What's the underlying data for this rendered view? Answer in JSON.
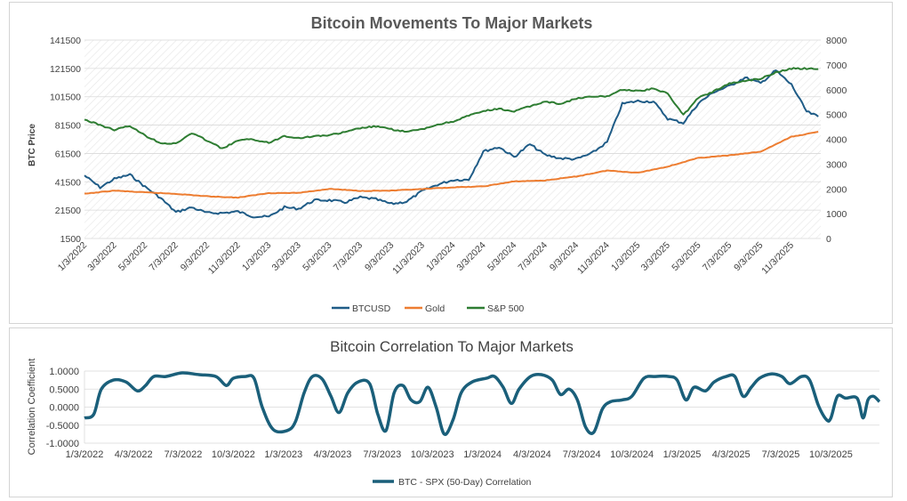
{
  "chart_data": [
    {
      "type": "line",
      "title": "Bitcoin Movements To Major Markets",
      "ylabel": "BTC Price",
      "y2label": "",
      "ylim": [
        1500,
        141500
      ],
      "y2lim": [
        0,
        8000
      ],
      "yticks": [
        "141500",
        "121500",
        "101500",
        "81500",
        "61500",
        "41500",
        "21500",
        "1500"
      ],
      "y2ticks": [
        "8000",
        "7000",
        "6000",
        "5000",
        "4000",
        "3000",
        "2000",
        "1000",
        "0"
      ],
      "xticks": [
        "1/3/2022",
        "3/3/2022",
        "5/3/2022",
        "7/3/2022",
        "9/3/2022",
        "11/3/2022",
        "1/3/2023",
        "3/3/2023",
        "5/3/2023",
        "7/3/2023",
        "9/3/2023",
        "11/3/2023",
        "1/3/2024",
        "3/3/2024",
        "5/3/2024",
        "7/3/2024",
        "9/3/2024",
        "11/3/2024",
        "1/3/2025",
        "3/3/2025",
        "5/3/2025",
        "7/3/2025",
        "9/3/2025",
        "11/3/2025"
      ],
      "grid": true,
      "legend_position": "bottom",
      "series": [
        {
          "name": "BTCUSD",
          "axis": "left",
          "color": "#1f5c87",
          "points": [
            [
              "1/3/2022",
              46000
            ],
            [
              "2/3/2022",
              37500
            ],
            [
              "3/3/2022",
              43500
            ],
            [
              "4/3/2022",
              46500
            ],
            [
              "5/3/2022",
              38000
            ],
            [
              "6/3/2022",
              30000
            ],
            [
              "7/3/2022",
              20000
            ],
            [
              "8/3/2022",
              23500
            ],
            [
              "9/3/2022",
              19500
            ],
            [
              "10/3/2022",
              19500
            ],
            [
              "11/3/2022",
              20500
            ],
            [
              "12/3/2022",
              17000
            ],
            [
              "1/3/2023",
              16800
            ],
            [
              "2/3/2023",
              23500
            ],
            [
              "3/3/2023",
              22500
            ],
            [
              "4/3/2023",
              28500
            ],
            [
              "5/3/2023",
              28500
            ],
            [
              "6/3/2023",
              27000
            ],
            [
              "7/3/2023",
              30500
            ],
            [
              "8/3/2023",
              29200
            ],
            [
              "9/3/2023",
              25900
            ],
            [
              "10/3/2023",
              27500
            ],
            [
              "11/3/2023",
              35000
            ],
            [
              "12/3/2023",
              39500
            ],
            [
              "1/3/2024",
              42800
            ],
            [
              "2/3/2024",
              43000
            ],
            [
              "3/3/2024",
              63000
            ],
            [
              "4/3/2024",
              66000
            ],
            [
              "5/3/2024",
              59000
            ],
            [
              "6/3/2024",
              68000
            ],
            [
              "7/3/2024",
              60500
            ],
            [
              "8/3/2024",
              58000
            ],
            [
              "9/3/2024",
              57500
            ],
            [
              "10/3/2024",
              61500
            ],
            [
              "11/3/2024",
              69500
            ],
            [
              "12/3/2024",
              96500
            ],
            [
              "1/3/2025",
              98500
            ],
            [
              "2/3/2025",
              98000
            ],
            [
              "3/3/2025",
              86000
            ],
            [
              "4/3/2025",
              83000
            ],
            [
              "5/3/2025",
              97000
            ],
            [
              "6/3/2025",
              105000
            ],
            [
              "7/3/2025",
              109000
            ],
            [
              "8/3/2025",
              115000
            ],
            [
              "9/3/2025",
              111000
            ],
            [
              "10/3/2025",
              120000
            ],
            [
              "11/3/2025",
              110000
            ],
            [
              "12/3/2025",
              91000
            ],
            [
              "12/26/2025",
              87500
            ]
          ]
        },
        {
          "name": "Gold",
          "axis": "right",
          "color": "#ed7d31",
          "points": [
            [
              "1/3/2022",
              1800
            ],
            [
              "3/3/2022",
              1930
            ],
            [
              "5/3/2022",
              1860
            ],
            [
              "7/3/2022",
              1800
            ],
            [
              "9/3/2022",
              1700
            ],
            [
              "11/3/2022",
              1650
            ],
            [
              "1/3/2023",
              1830
            ],
            [
              "3/3/2023",
              1840
            ],
            [
              "5/3/2023",
              2000
            ],
            [
              "7/3/2023",
              1920
            ],
            [
              "9/3/2023",
              1930
            ],
            [
              "11/3/2023",
              1990
            ],
            [
              "1/3/2024",
              2060
            ],
            [
              "3/3/2024",
              2100
            ],
            [
              "5/3/2024",
              2300
            ],
            [
              "7/3/2024",
              2340
            ],
            [
              "9/3/2024",
              2500
            ],
            [
              "11/3/2024",
              2740
            ],
            [
              "1/3/2025",
              2650
            ],
            [
              "3/3/2025",
              2900
            ],
            [
              "5/3/2025",
              3250
            ],
            [
              "7/3/2025",
              3350
            ],
            [
              "9/3/2025",
              3500
            ],
            [
              "11/3/2025",
              4100
            ],
            [
              "12/26/2025",
              4300
            ]
          ]
        },
        {
          "name": "S&P 500",
          "axis": "right",
          "color": "#2e7d32",
          "points": [
            [
              "1/3/2022",
              4790
            ],
            [
              "3/3/2022",
              4380
            ],
            [
              "4/3/2022",
              4540
            ],
            [
              "5/3/2022",
              4150
            ],
            [
              "6/3/2022",
              3850
            ],
            [
              "7/3/2022",
              3820
            ],
            [
              "8/3/2022",
              4250
            ],
            [
              "9/3/2022",
              3950
            ],
            [
              "10/3/2022",
              3620
            ],
            [
              "11/3/2022",
              3950
            ],
            [
              "12/3/2022",
              4000
            ],
            [
              "1/3/2023",
              3850
            ],
            [
              "2/3/2023",
              4140
            ],
            [
              "3/3/2023",
              4050
            ],
            [
              "4/3/2023",
              4120
            ],
            [
              "5/3/2023",
              4170
            ],
            [
              "6/3/2023",
              4280
            ],
            [
              "7/3/2023",
              4450
            ],
            [
              "8/3/2023",
              4520
            ],
            [
              "9/3/2023",
              4400
            ],
            [
              "10/3/2023",
              4300
            ],
            [
              "11/3/2023",
              4400
            ],
            [
              "12/3/2023",
              4590
            ],
            [
              "1/3/2024",
              4720
            ],
            [
              "2/3/2024",
              4950
            ],
            [
              "3/3/2024",
              5130
            ],
            [
              "4/3/2024",
              5230
            ],
            [
              "5/3/2024",
              5120
            ],
            [
              "6/3/2024",
              5330
            ],
            [
              "7/3/2024",
              5520
            ],
            [
              "8/3/2024",
              5430
            ],
            [
              "9/3/2024",
              5640
            ],
            [
              "10/3/2024",
              5710
            ],
            [
              "11/3/2024",
              5730
            ],
            [
              "12/3/2024",
              6010
            ],
            [
              "1/3/2025",
              5940
            ],
            [
              "2/3/2025",
              6040
            ],
            [
              "3/3/2025",
              5840
            ],
            [
              "4/3/2025",
              4980
            ],
            [
              "5/3/2025",
              5680
            ],
            [
              "6/3/2025",
              5940
            ],
            [
              "7/3/2025",
              6250
            ],
            [
              "8/3/2025",
              6350
            ],
            [
              "9/3/2025",
              6450
            ],
            [
              "10/3/2025",
              6700
            ],
            [
              "11/3/2025",
              6850
            ],
            [
              "12/3/2025",
              6850
            ],
            [
              "12/26/2025",
              6830
            ]
          ]
        }
      ]
    },
    {
      "type": "line",
      "title": "Bitcoin Correlation To Major Markets",
      "ylabel": "Correlation Coefficient",
      "ylim": [
        -1,
        1
      ],
      "yticks": [
        "1.0000",
        "0.5000",
        "0.0000",
        "-0.5000",
        "-1.0000"
      ],
      "xticks": [
        "1/3/2022",
        "4/3/2022",
        "7/3/2022",
        "10/3/2022",
        "1/3/2023",
        "4/3/2023",
        "7/3/2023",
        "10/3/2023",
        "1/3/2024",
        "4/3/2024",
        "7/3/2024",
        "10/3/2024",
        "1/3/2025",
        "4/3/2025",
        "7/3/2025",
        "10/3/2025"
      ],
      "grid": true,
      "legend_position": "bottom",
      "series": [
        {
          "name": "BTC - SPX (50-Day) Correlation",
          "color": "#1a5f7a",
          "points": [
            [
              "1/3/2022",
              -0.3
            ],
            [
              "1/20/2022",
              -0.2
            ],
            [
              "2/3/2022",
              0.5
            ],
            [
              "2/25/2022",
              0.75
            ],
            [
              "3/20/2022",
              0.7
            ],
            [
              "4/10/2022",
              0.45
            ],
            [
              "4/25/2022",
              0.6
            ],
            [
              "5/10/2022",
              0.85
            ],
            [
              "6/1/2022",
              0.85
            ],
            [
              "7/1/2022",
              0.95
            ],
            [
              "8/1/2022",
              0.9
            ],
            [
              "9/1/2022",
              0.85
            ],
            [
              "9/20/2022",
              0.6
            ],
            [
              "10/3/2022",
              0.8
            ],
            [
              "10/25/2022",
              0.85
            ],
            [
              "11/10/2022",
              0.8
            ],
            [
              "11/25/2022",
              0.0
            ],
            [
              "12/15/2022",
              -0.62
            ],
            [
              "1/10/2023",
              -0.65
            ],
            [
              "1/25/2023",
              -0.4
            ],
            [
              "2/10/2023",
              0.4
            ],
            [
              "2/25/2023",
              0.85
            ],
            [
              "3/15/2023",
              0.78
            ],
            [
              "3/31/2023",
              0.3
            ],
            [
              "4/15/2023",
              -0.15
            ],
            [
              "5/1/2023",
              0.4
            ],
            [
              "5/20/2023",
              0.7
            ],
            [
              "6/10/2023",
              0.65
            ],
            [
              "6/25/2023",
              -0.2
            ],
            [
              "7/10/2023",
              -0.65
            ],
            [
              "7/25/2023",
              0.4
            ],
            [
              "8/10/2023",
              0.6
            ],
            [
              "8/25/2023",
              0.2
            ],
            [
              "9/10/2023",
              0.15
            ],
            [
              "9/25/2023",
              0.55
            ],
            [
              "10/10/2023",
              0.0
            ],
            [
              "10/25/2023",
              -0.75
            ],
            [
              "11/10/2023",
              -0.35
            ],
            [
              "11/25/2023",
              0.4
            ],
            [
              "12/15/2023",
              0.7
            ],
            [
              "1/10/2024",
              0.8
            ],
            [
              "1/25/2024",
              0.85
            ],
            [
              "2/10/2024",
              0.55
            ],
            [
              "2/25/2024",
              0.1
            ],
            [
              "3/10/2024",
              0.5
            ],
            [
              "3/31/2024",
              0.85
            ],
            [
              "4/20/2024",
              0.9
            ],
            [
              "5/10/2024",
              0.75
            ],
            [
              "5/25/2024",
              0.35
            ],
            [
              "6/10/2024",
              0.5
            ],
            [
              "6/25/2024",
              0.2
            ],
            [
              "7/10/2024",
              -0.55
            ],
            [
              "7/25/2024",
              -0.7
            ],
            [
              "8/10/2024",
              -0.05
            ],
            [
              "8/25/2024",
              0.15
            ],
            [
              "9/15/2024",
              0.2
            ],
            [
              "10/3/2024",
              0.3
            ],
            [
              "10/25/2024",
              0.8
            ],
            [
              "11/15/2024",
              0.85
            ],
            [
              "12/10/2024",
              0.85
            ],
            [
              "12/25/2024",
              0.75
            ],
            [
              "1/10/2025",
              0.2
            ],
            [
              "1/25/2025",
              0.55
            ],
            [
              "2/15/2025",
              0.45
            ],
            [
              "3/3/2025",
              0.7
            ],
            [
              "3/25/2025",
              0.85
            ],
            [
              "4/10/2025",
              0.85
            ],
            [
              "4/25/2025",
              0.3
            ],
            [
              "5/10/2025",
              0.55
            ],
            [
              "5/25/2025",
              0.8
            ],
            [
              "6/15/2025",
              0.92
            ],
            [
              "7/5/2025",
              0.85
            ],
            [
              "7/20/2025",
              0.65
            ],
            [
              "8/10/2025",
              0.85
            ],
            [
              "8/25/2025",
              0.75
            ],
            [
              "9/10/2025",
              0.05
            ],
            [
              "9/25/2025",
              -0.35
            ],
            [
              "10/3/2025",
              -0.3
            ],
            [
              "10/15/2025",
              0.3
            ],
            [
              "10/30/2025",
              0.25
            ],
            [
              "11/20/2025",
              0.25
            ],
            [
              "12/1/2025",
              -0.3
            ],
            [
              "12/10/2025",
              0.2
            ],
            [
              "12/20/2025",
              0.3
            ],
            [
              "12/31/2025",
              0.15
            ]
          ]
        }
      ]
    }
  ]
}
